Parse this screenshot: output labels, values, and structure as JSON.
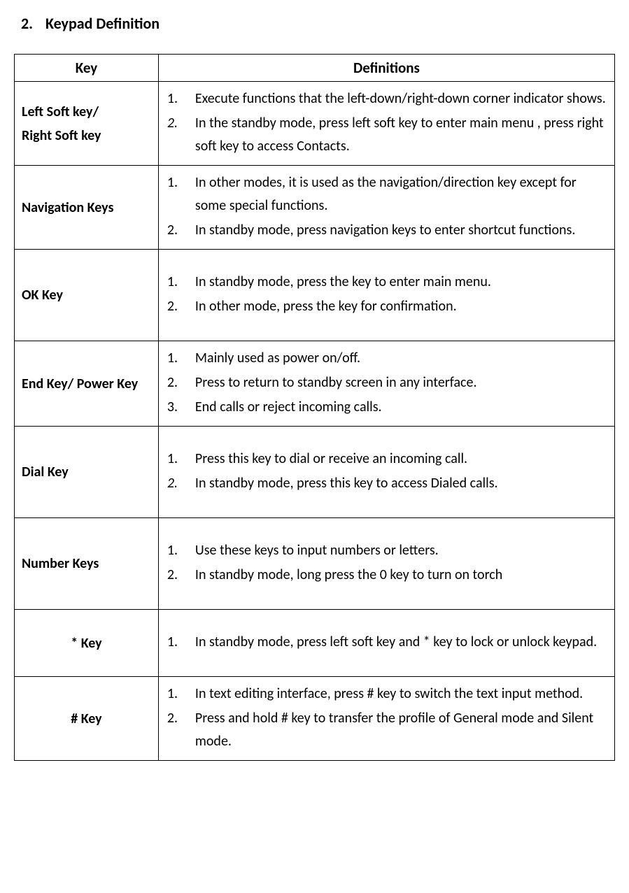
{
  "heading": {
    "number": "2.",
    "text": "Keypad Definition"
  },
  "table": {
    "headers": {
      "key": "Key",
      "def": "Definitions"
    },
    "rows": [
      {
        "keyLines": [
          "Left Soft key/",
          "Right Soft key"
        ],
        "keyAlign": "left",
        "padTall": false,
        "items": [
          {
            "num": "1.",
            "italic": false,
            "text": "Execute functions that the left-down/right-down corner indicator shows."
          },
          {
            "num": "2.",
            "italic": true,
            "text": "In the standby mode, press left soft key to enter main menu , press right soft key to access Contacts."
          }
        ]
      },
      {
        "keyLines": [
          "Navigation Keys"
        ],
        "keyAlign": "left",
        "padTall": false,
        "items": [
          {
            "num": "1.",
            "italic": false,
            "text": "In other modes, it is used as the navigation/direction key except for some special functions."
          },
          {
            "num": "2.",
            "italic": false,
            "text": "In standby mode, press navigation keys to enter shortcut functions."
          }
        ]
      },
      {
        "keyLines": [
          "OK Key"
        ],
        "keyAlign": "left",
        "padTall": true,
        "items": [
          {
            "num": "1.",
            "italic": false,
            "text": "In standby mode, press the key to enter main menu."
          },
          {
            "num": "2.",
            "italic": false,
            "text": "In other mode, press the key for confirmation."
          }
        ]
      },
      {
        "keyLines": [
          "End Key/ Power Key"
        ],
        "keyAlign": "left",
        "padTall": false,
        "items": [
          {
            "num": "1.",
            "italic": false,
            "text": "Mainly used as power on/off."
          },
          {
            "num": "2.",
            "italic": false,
            "text": "Press to return to standby screen in any interface."
          },
          {
            "num": "3.",
            "italic": false,
            "text": "End calls or reject incoming calls."
          }
        ]
      },
      {
        "keyLines": [
          "Dial Key"
        ],
        "keyAlign": "left",
        "padTall": true,
        "items": [
          {
            "num": "1.",
            "italic": false,
            "text": "Press this key to dial or receive an incoming call."
          },
          {
            "num": "2.",
            "italic": true,
            "text": "In standby mode, press this key to access Dialed calls."
          }
        ]
      },
      {
        "keyLines": [
          "Number Keys"
        ],
        "keyAlign": "left",
        "padTall": true,
        "items": [
          {
            "num": "1.",
            "italic": false,
            "text": "Use these keys to input numbers or letters."
          },
          {
            "num": "2.",
            "italic": false,
            "text": "In standby mode, long press the 0 key to turn on torch"
          }
        ]
      },
      {
        "keyLines": [
          "* Key"
        ],
        "keyAlign": "center",
        "padTall": true,
        "items": [
          {
            "num": "1.",
            "italic": false,
            "text": "In standby mode, press left soft key and * key to lock or unlock keypad."
          }
        ]
      },
      {
        "keyLines": [
          "# Key"
        ],
        "keyAlign": "center",
        "padTall": false,
        "items": [
          {
            "num": "1.",
            "italic": false,
            "text": "In text editing interface, press # key to switch the text input method."
          },
          {
            "num": "2.",
            "italic": false,
            "text": "Press and hold # key to transfer the profile of General mode and Silent mode."
          }
        ]
      }
    ]
  }
}
